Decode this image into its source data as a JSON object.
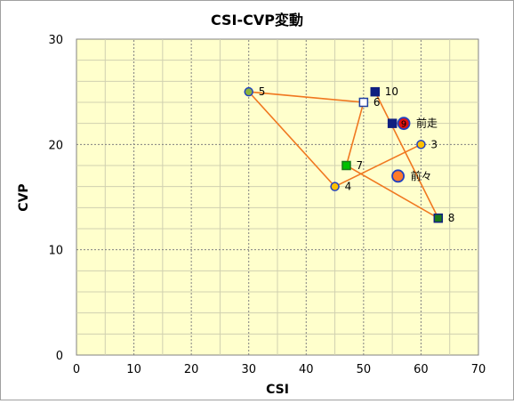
{
  "chart_data": {
    "type": "scatter",
    "title": "CSI-CVP変動",
    "xlabel": "CSI",
    "ylabel": "CVP",
    "xlim": [
      0,
      70
    ],
    "ylim": [
      0,
      30
    ],
    "xticks": [
      0,
      10,
      20,
      30,
      40,
      50,
      60,
      70
    ],
    "yticks": [
      0,
      10,
      20,
      30
    ],
    "grid": true,
    "colors": {
      "plot_bg": "#FFFFCC",
      "line": "#F07820",
      "circle_fill": "#FFC000",
      "circle_edge": "#2040C0",
      "highlight_red": "#E01010",
      "highlight_orange": "#FF7A2A",
      "navy": "#102080",
      "blue": "#2040A0",
      "green": "#00C000",
      "dark_green": "#1A7A1A",
      "olive_green": "#8CB43C"
    },
    "connected_points": [
      {
        "label": "3",
        "x": 60,
        "y": 20,
        "marker": "circle",
        "fill": "#FFC000",
        "edge": "#2040C0"
      },
      {
        "label": "4",
        "x": 45,
        "y": 16,
        "marker": "circle",
        "fill": "#FFC000",
        "edge": "#2040C0"
      },
      {
        "label": "5",
        "x": 30,
        "y": 25,
        "marker": "circle",
        "fill": "#8CB43C",
        "edge": "#2040C0"
      },
      {
        "label": "6",
        "x": 50,
        "y": 24,
        "marker": "square",
        "fill": "#FFFFFF",
        "edge": "#2040A0"
      },
      {
        "label": "7",
        "x": 47,
        "y": 18,
        "marker": "square",
        "fill": "#00C000",
        "edge": "#1A7A1A"
      },
      {
        "label": "8",
        "x": 63,
        "y": 13,
        "marker": "square",
        "fill": "#1A7A1A",
        "edge": "#102080"
      },
      {
        "label": "10",
        "x": 52,
        "y": 25,
        "marker": "square",
        "fill": "#102080",
        "edge": "#102080"
      }
    ],
    "extra_points": [
      {
        "label": "",
        "x": 55,
        "y": 22,
        "marker": "square",
        "fill": "#102080",
        "edge": "#102080"
      },
      {
        "label": "前走",
        "x": 57,
        "y": 22,
        "marker": "bigcircle",
        "fill": "#E01010",
        "edge": "#2040C0"
      },
      {
        "label": "前々",
        "x": 56,
        "y": 17,
        "marker": "bigcircle",
        "fill": "#FF7A2A",
        "edge": "#2040C0"
      }
    ],
    "inner_marker_text": "9"
  }
}
